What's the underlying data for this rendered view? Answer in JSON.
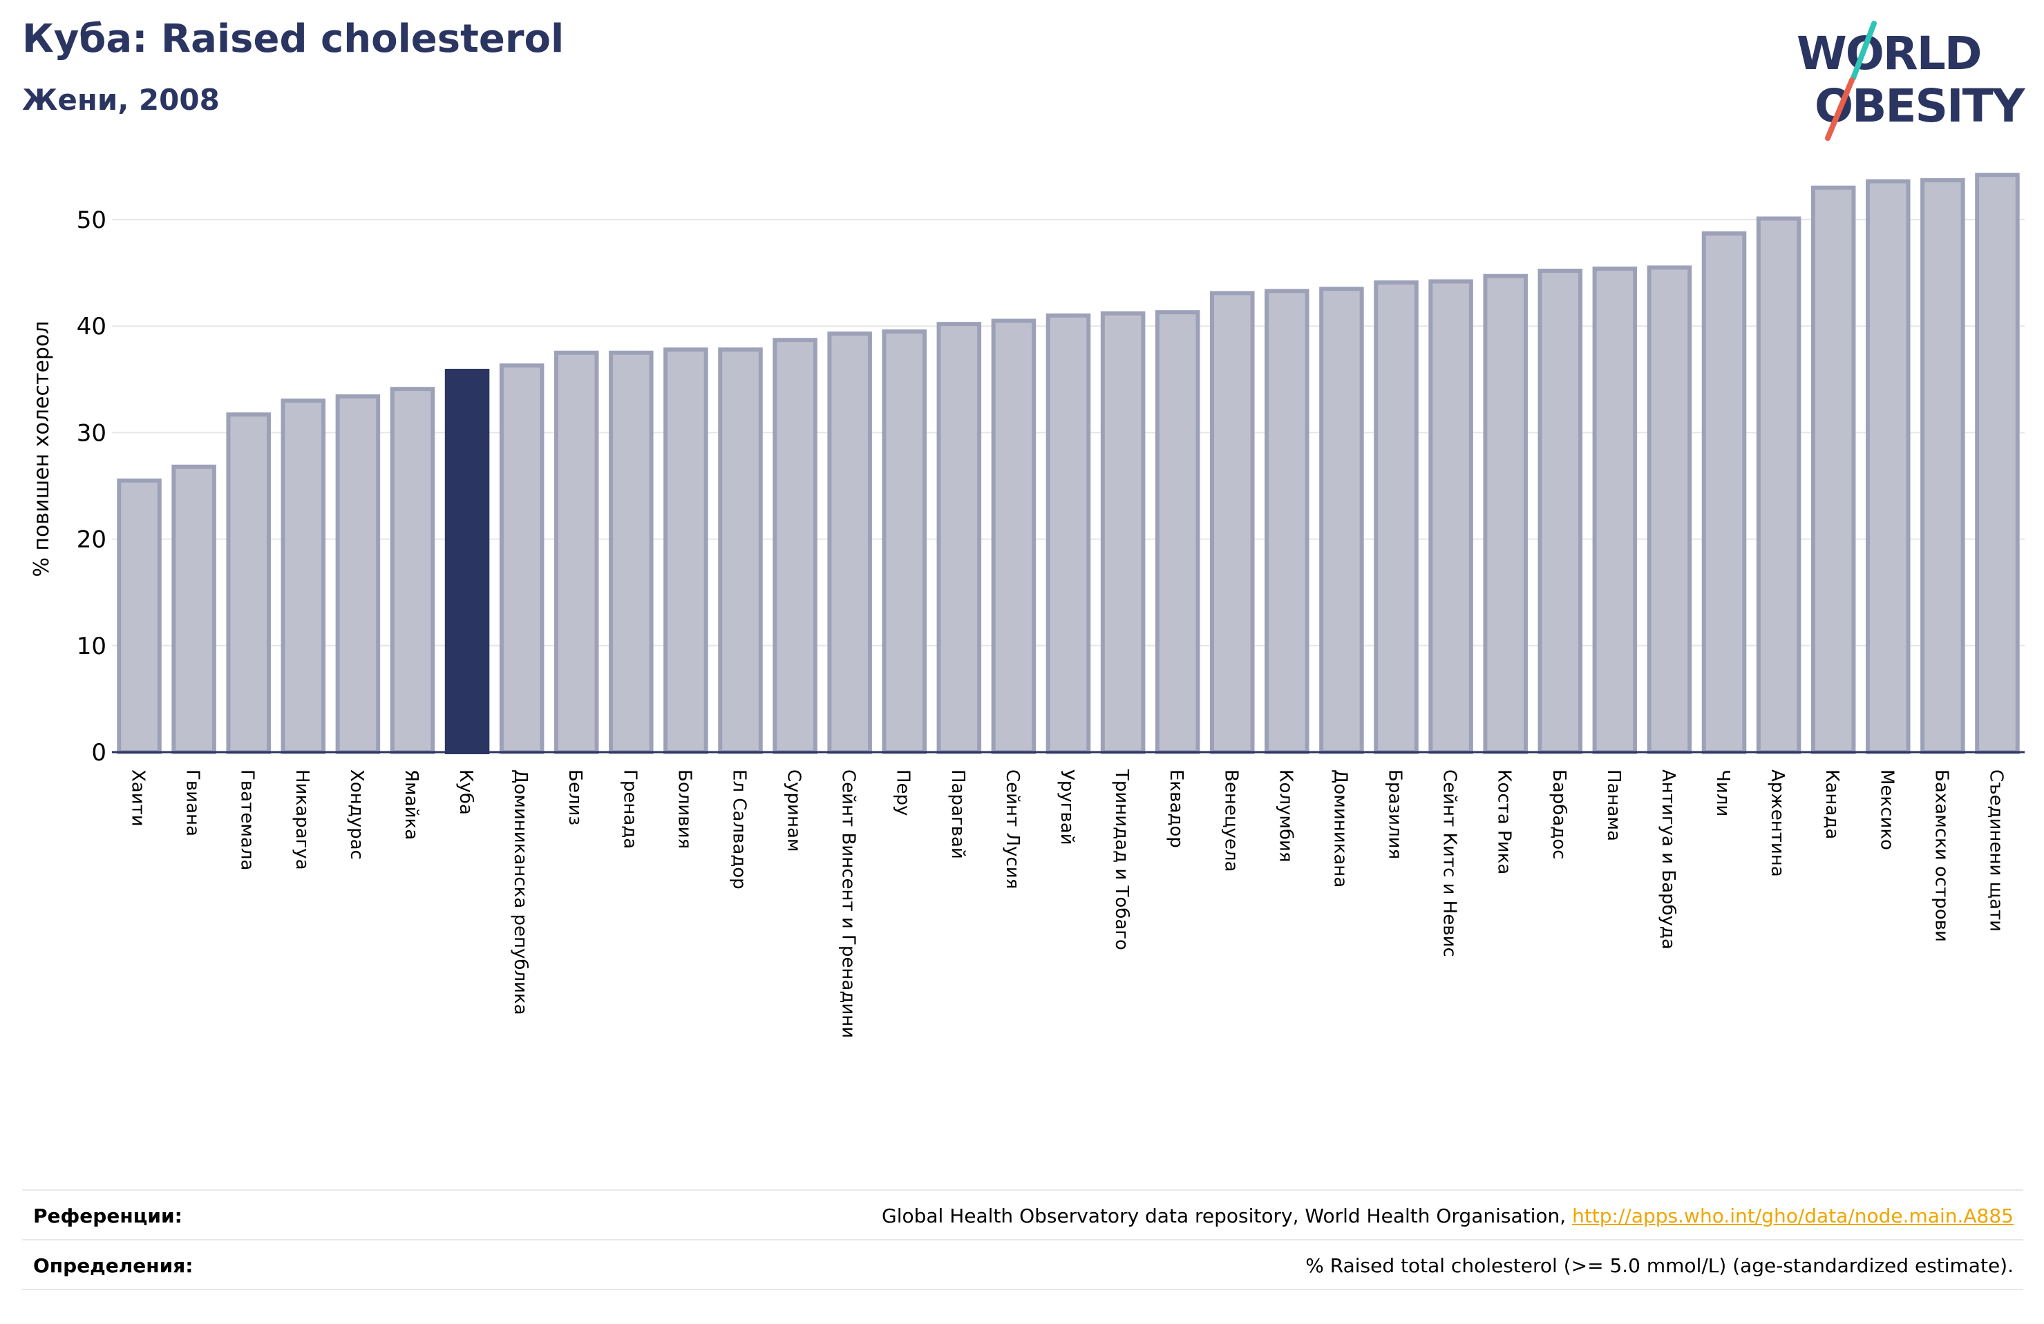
{
  "header": {
    "title": "Куба: Raised cholesterol",
    "subtitle": "Жени, 2008"
  },
  "logo": {
    "line1": "WORLD",
    "line2": "OBESITY"
  },
  "colors": {
    "bar": "#bec1cd",
    "bar_border": "#9da1b8",
    "highlight": "#2b3561",
    "title": "#2b3561",
    "grid": "#e6e6e6",
    "link": "#f0a500",
    "logo_teal": "#2ec4b6",
    "logo_red": "#e8604c"
  },
  "chart_data": {
    "type": "bar",
    "title": "Куба: Raised cholesterol",
    "subtitle": "Жени, 2008",
    "ylabel": "% повишен холестерол",
    "xlabel": "",
    "ylim": [
      0,
      55
    ],
    "yticks": [
      0,
      10,
      20,
      30,
      40,
      50
    ],
    "grid": true,
    "highlight": "Куба",
    "categories": [
      "Хаити",
      "Гвиана",
      "Гватемала",
      "Никарагуа",
      "Хондурас",
      "Ямайка",
      "Куба",
      "Доминиканска република",
      "Белиз",
      "Гренада",
      "Боливия",
      "Ел Салвадор",
      "Суринам",
      "Сейнт Винсент и Гренадини",
      "Перу",
      "Парагвай",
      "Сейнт Лусия",
      "Уругвай",
      "Тринидад и Тобаго",
      "Еквадор",
      "Венецуела",
      "Колумбия",
      "Доминикана",
      "Бразилия",
      "Сейнт Китс и Невис",
      "Коста Рика",
      "Барбадос",
      "Панама",
      "Антигуа и Барбуда",
      "Чили",
      "Аржентина",
      "Канада",
      "Мексико",
      "Бахамски острови",
      "Съединени щати"
    ],
    "values": [
      25.5,
      26.8,
      31.7,
      33.0,
      33.4,
      34.1,
      35.8,
      36.3,
      37.5,
      37.5,
      37.8,
      37.8,
      38.7,
      39.3,
      39.5,
      40.2,
      40.5,
      41.0,
      41.2,
      41.3,
      43.1,
      43.3,
      43.5,
      44.1,
      44.2,
      44.7,
      45.2,
      45.4,
      45.5,
      48.7,
      50.1,
      53.0,
      53.6,
      53.7,
      54.2
    ]
  },
  "references": [
    {
      "label": "Референции:",
      "text": "Global Health Observatory data repository, World Health Organisation, ",
      "link": "http://apps.who.int/gho/data/node.main.A885"
    },
    {
      "label": "Определения:",
      "text": "% Raised total cholesterol (>= 5.0 mmol/L) (age-standardized estimate).",
      "link": ""
    }
  ]
}
